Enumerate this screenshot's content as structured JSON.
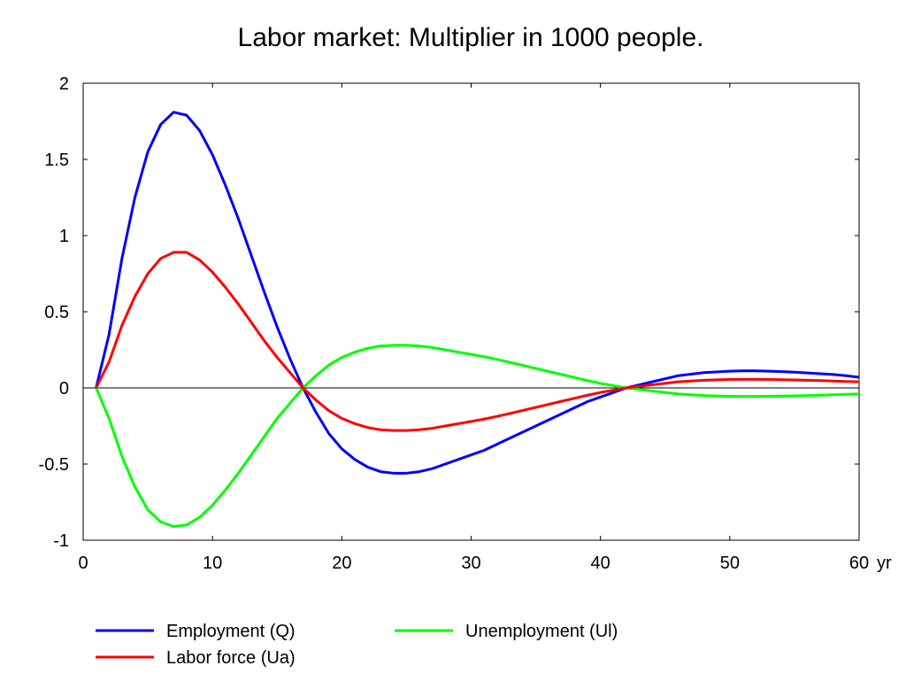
{
  "chart_data": {
    "type": "line",
    "title": "Labor market: Multiplier in 1000 people.",
    "xlabel": "",
    "ylabel": "",
    "x_unit_label": "yr",
    "xlim": [
      0,
      60
    ],
    "ylim": [
      -1,
      2
    ],
    "x_ticks": [
      "0",
      "10",
      "20",
      "30",
      "40",
      "50",
      "60"
    ],
    "y_ticks": [
      "2",
      "1.5",
      "1",
      "0.5",
      "0",
      "-0.5",
      "-1"
    ],
    "legend_placement": "bottom",
    "grid": false,
    "x": [
      1,
      2,
      3,
      4,
      5,
      6,
      7,
      8,
      9,
      10,
      11,
      12,
      13,
      14,
      15,
      16,
      17,
      18,
      19,
      20,
      21,
      22,
      23,
      24,
      25,
      26,
      27,
      28,
      29,
      30,
      31,
      32,
      33,
      34,
      35,
      36,
      37,
      38,
      39,
      40,
      41,
      42,
      43,
      44,
      45,
      46,
      47,
      48,
      49,
      50,
      51,
      52,
      53,
      54,
      55,
      56,
      57,
      58,
      59,
      60
    ],
    "series": [
      {
        "name": "Employment (Q)",
        "color": "#0000ff",
        "values": [
          0,
          0.35,
          0.85,
          1.25,
          1.55,
          1.73,
          1.81,
          1.79,
          1.69,
          1.53,
          1.33,
          1.11,
          0.87,
          0.63,
          0.4,
          0.19,
          0.0,
          -0.16,
          -0.3,
          -0.4,
          -0.47,
          -0.52,
          -0.55,
          -0.56,
          -0.56,
          -0.55,
          -0.53,
          -0.5,
          -0.47,
          -0.44,
          -0.41,
          -0.37,
          -0.33,
          -0.29,
          -0.25,
          -0.21,
          -0.17,
          -0.13,
          -0.09,
          -0.06,
          -0.03,
          0.0,
          0.02,
          0.04,
          0.06,
          0.08,
          0.09,
          0.1,
          0.105,
          0.11,
          0.112,
          0.112,
          0.11,
          0.107,
          0.103,
          0.098,
          0.093,
          0.088,
          0.08,
          0.07
        ]
      },
      {
        "name": "Unemployment (Ul)",
        "color": "#00ff00",
        "values": [
          0,
          -0.2,
          -0.45,
          -0.65,
          -0.8,
          -0.88,
          -0.91,
          -0.9,
          -0.85,
          -0.77,
          -0.67,
          -0.56,
          -0.44,
          -0.32,
          -0.2,
          -0.1,
          0.0,
          0.08,
          0.15,
          0.2,
          0.235,
          0.26,
          0.275,
          0.28,
          0.28,
          0.275,
          0.265,
          0.25,
          0.235,
          0.22,
          0.205,
          0.187,
          0.168,
          0.148,
          0.128,
          0.108,
          0.088,
          0.068,
          0.048,
          0.03,
          0.015,
          0.0,
          -0.01,
          -0.02,
          -0.03,
          -0.04,
          -0.045,
          -0.05,
          -0.053,
          -0.055,
          -0.056,
          -0.056,
          -0.055,
          -0.054,
          -0.052,
          -0.05,
          -0.048,
          -0.045,
          -0.042,
          -0.04
        ]
      },
      {
        "name": "Labor force (Ua)",
        "color": "#ff0000",
        "values": [
          0,
          0.17,
          0.41,
          0.6,
          0.75,
          0.85,
          0.89,
          0.89,
          0.84,
          0.76,
          0.66,
          0.55,
          0.43,
          0.31,
          0.2,
          0.1,
          0.0,
          -0.08,
          -0.15,
          -0.2,
          -0.235,
          -0.26,
          -0.275,
          -0.28,
          -0.28,
          -0.275,
          -0.265,
          -0.25,
          -0.235,
          -0.22,
          -0.205,
          -0.187,
          -0.168,
          -0.148,
          -0.128,
          -0.108,
          -0.088,
          -0.068,
          -0.048,
          -0.03,
          -0.015,
          0.0,
          0.01,
          0.02,
          0.03,
          0.04,
          0.045,
          0.05,
          0.053,
          0.055,
          0.056,
          0.056,
          0.055,
          0.054,
          0.052,
          0.05,
          0.048,
          0.045,
          0.042,
          0.04
        ]
      }
    ],
    "legend_rows": [
      [
        "Employment (Q)",
        "Unemployment (Ul)"
      ],
      [
        "Labor force (Ua)"
      ]
    ]
  }
}
